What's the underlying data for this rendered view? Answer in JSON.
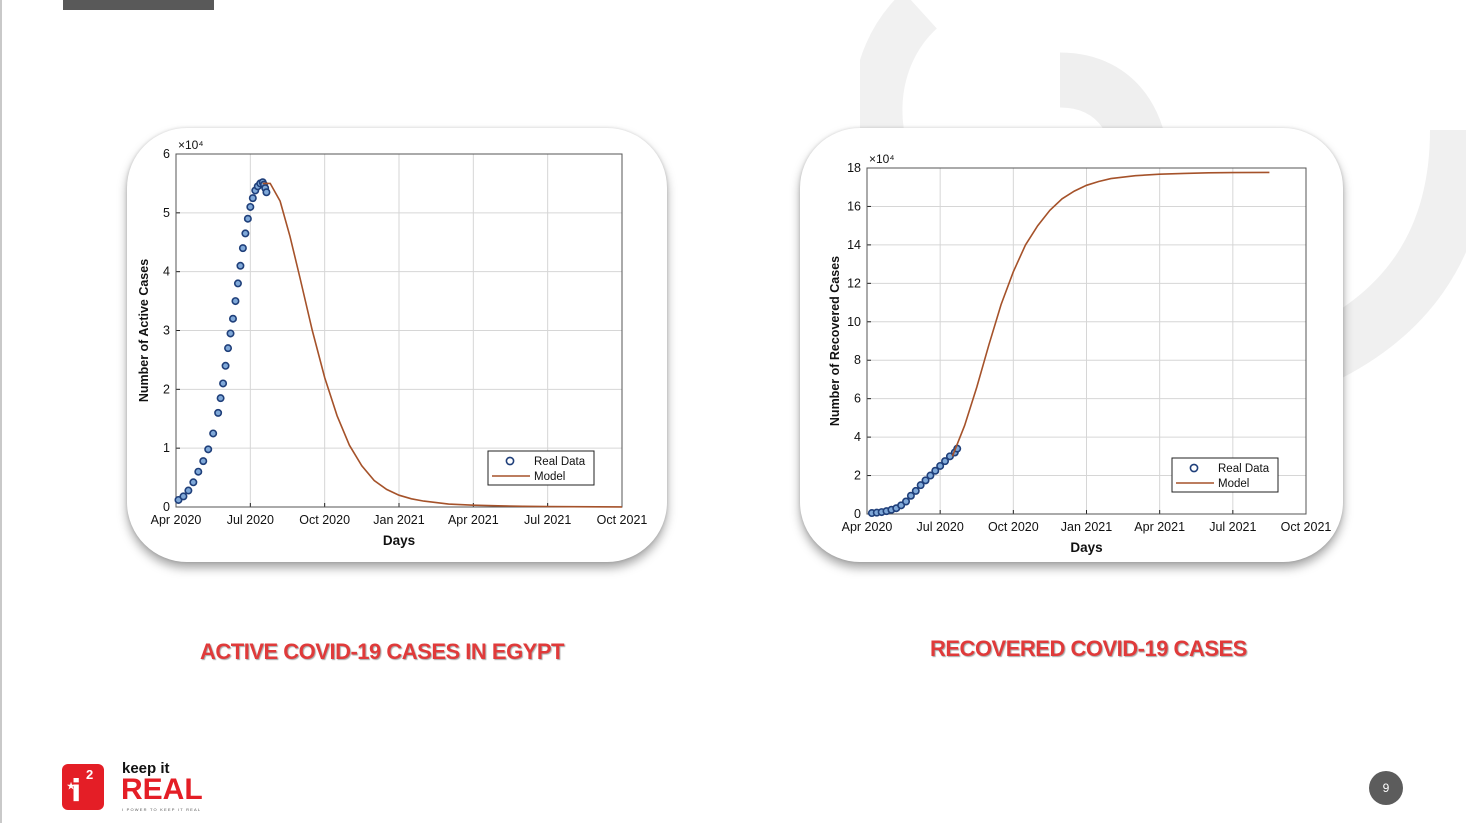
{
  "slide": {
    "page_number": "9",
    "captions": {
      "active": "ACTIVE COVID-19 CASES IN EGYPT",
      "recovered": "RECOVERED COVID-19 CASES"
    },
    "logo": {
      "line1": "keep it",
      "line2": "REAL",
      "tagline": "I POWER TO KEEP IT REAL",
      "badge_letter": "i",
      "badge_sup": "2"
    },
    "colors": {
      "caption": "#e03a3a",
      "model_line": "#a5522a",
      "real_data_marker": "#1f3f7a",
      "brand_red": "#e41e26"
    }
  },
  "chart_data": [
    {
      "type": "line",
      "title": "",
      "xlabel": "Days",
      "ylabel": "Number of Active Cases",
      "y_multiplier": "×10⁴",
      "xlim": [
        "Apr 2020",
        "Oct 2021"
      ],
      "ylim": [
        0,
        6
      ],
      "x_ticks": [
        "Apr 2020",
        "Jul 2020",
        "Oct 2020",
        "Jan 2021",
        "Apr 2021",
        "Jul 2021",
        "Oct 2021"
      ],
      "y_ticks": [
        "0",
        "1",
        "2",
        "3",
        "4",
        "5",
        "6"
      ],
      "grid": true,
      "legend": {
        "placement": "bottom-right",
        "entries": [
          "Real Data",
          "Model"
        ]
      },
      "series": [
        {
          "name": "Real Data",
          "style": "circles",
          "x_months": [
            0.1,
            0.3,
            0.5,
            0.7,
            0.9,
            1.1,
            1.3,
            1.5,
            1.7,
            1.8,
            1.9,
            2.0,
            2.1,
            2.2,
            2.3,
            2.4,
            2.5,
            2.6,
            2.7,
            2.8,
            2.9,
            3.0,
            3.1,
            3.2,
            3.3,
            3.4,
            3.5,
            3.55,
            3.6,
            3.65
          ],
          "y": [
            0.12,
            0.18,
            0.28,
            0.42,
            0.6,
            0.78,
            0.98,
            1.25,
            1.6,
            1.85,
            2.1,
            2.4,
            2.7,
            2.95,
            3.2,
            3.5,
            3.8,
            4.1,
            4.4,
            4.65,
            4.9,
            5.1,
            5.25,
            5.38,
            5.45,
            5.5,
            5.52,
            5.48,
            5.42,
            5.35
          ]
        },
        {
          "name": "Model",
          "style": "line",
          "x_months": [
            3.5,
            3.8,
            4.2,
            4.6,
            5.0,
            5.5,
            6.0,
            6.5,
            7.0,
            7.5,
            8.0,
            8.5,
            9.0,
            9.5,
            10.0,
            11.0,
            12.0,
            13.0,
            14.0,
            15.0,
            16.0,
            17.0,
            18.0
          ],
          "y": [
            5.5,
            5.5,
            5.2,
            4.6,
            3.9,
            3.0,
            2.2,
            1.55,
            1.05,
            0.7,
            0.45,
            0.3,
            0.2,
            0.14,
            0.1,
            0.05,
            0.03,
            0.02,
            0.012,
            0.008,
            0.005,
            0.003,
            0.002
          ]
        }
      ]
    },
    {
      "type": "line",
      "title": "",
      "xlabel": "Days",
      "ylabel": "Number of Recovered Cases",
      "y_multiplier": "×10⁴",
      "xlim": [
        "Apr 2020",
        "Oct 2021"
      ],
      "ylim": [
        0,
        18
      ],
      "x_ticks": [
        "Apr 2020",
        "Jul 2020",
        "Oct 2020",
        "Jan 2021",
        "Apr 2021",
        "Jul 2021",
        "Oct 2021"
      ],
      "y_ticks": [
        "0",
        "2",
        "4",
        "6",
        "8",
        "10",
        "12",
        "14",
        "16",
        "18"
      ],
      "grid": true,
      "legend": {
        "placement": "bottom-right",
        "entries": [
          "Real Data",
          "Model"
        ]
      },
      "series": [
        {
          "name": "Real Data",
          "style": "circles",
          "x_months": [
            0.2,
            0.4,
            0.6,
            0.8,
            1.0,
            1.2,
            1.4,
            1.6,
            1.8,
            2.0,
            2.2,
            2.4,
            2.6,
            2.8,
            3.0,
            3.2,
            3.4,
            3.6,
            3.7
          ],
          "y": [
            0.05,
            0.07,
            0.1,
            0.15,
            0.22,
            0.3,
            0.45,
            0.65,
            0.95,
            1.2,
            1.5,
            1.75,
            2.0,
            2.25,
            2.5,
            2.75,
            3.0,
            3.2,
            3.4
          ]
        },
        {
          "name": "Model",
          "style": "line",
          "x_months": [
            3.5,
            4.0,
            4.5,
            5.0,
            5.5,
            6.0,
            6.5,
            7.0,
            7.5,
            8.0,
            8.5,
            9.0,
            9.5,
            10.0,
            11.0,
            12.0,
            13.0,
            14.0,
            15.0,
            16.5
          ],
          "y": [
            3.0,
            4.6,
            6.6,
            8.8,
            10.9,
            12.6,
            14.0,
            15.0,
            15.8,
            16.4,
            16.8,
            17.1,
            17.3,
            17.45,
            17.6,
            17.68,
            17.72,
            17.75,
            17.76,
            17.77
          ]
        }
      ]
    }
  ]
}
